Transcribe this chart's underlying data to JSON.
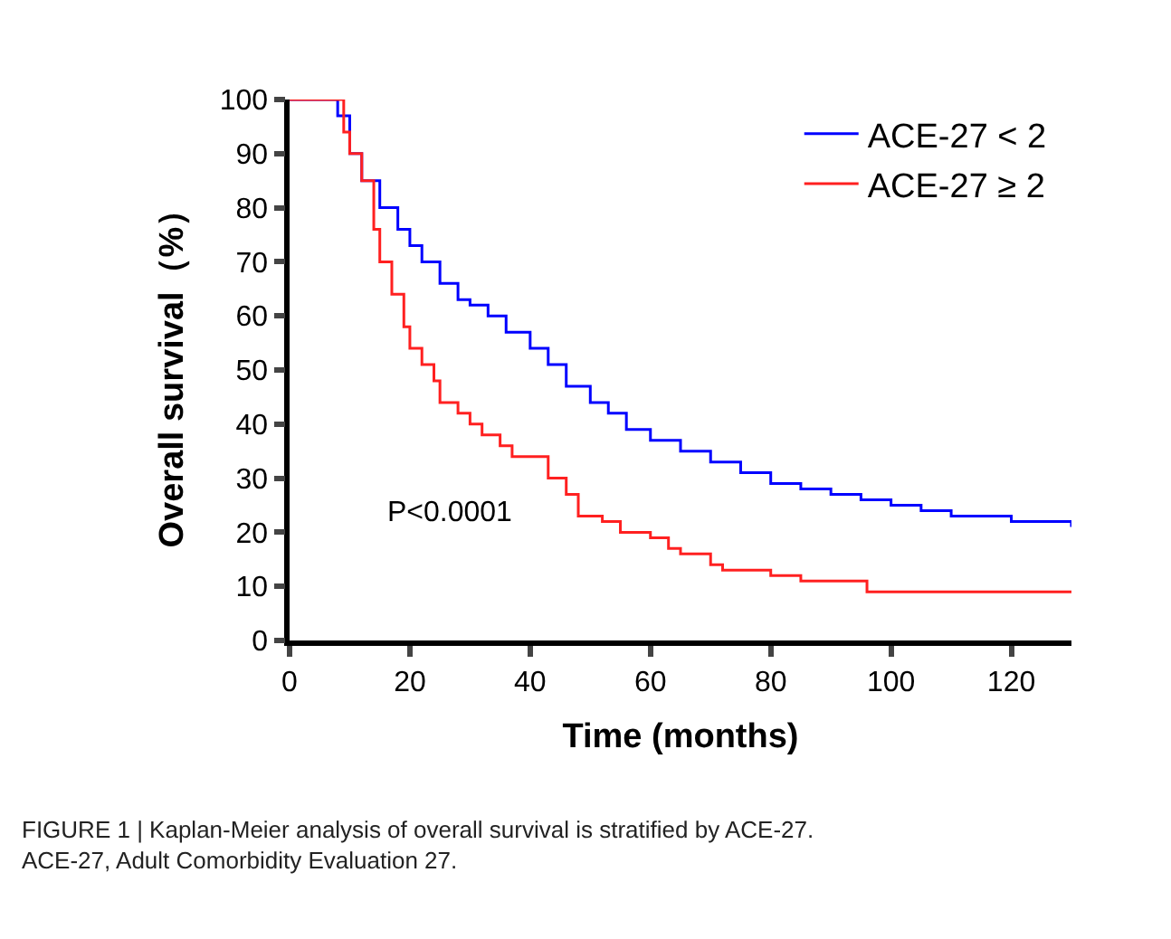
{
  "chart_data": {
    "type": "step",
    "xlabel": "Time (months)",
    "ylabel": "Overall survival（%）",
    "xlim": [
      0,
      130
    ],
    "xticks": [
      0,
      20,
      40,
      60,
      80,
      100,
      120
    ],
    "ylim": [
      0,
      100
    ],
    "yticks": [
      0,
      10,
      20,
      30,
      40,
      50,
      60,
      70,
      80,
      90,
      100
    ],
    "legend": "top right",
    "annotations": [
      "P<0.0001",
      "FIGURE 1 | Kaplan-Meier analysis of overall survival is stratified by ACE-27. ACE-27, Adult Comorbidity Evaluation 27."
    ],
    "series": [
      {
        "name": "ACE-27 < 2",
        "color": "#0000ff",
        "x": [
          0,
          3,
          8,
          10,
          12,
          15,
          18,
          20,
          22,
          25,
          28,
          30,
          33,
          36,
          40,
          43,
          46,
          50,
          53,
          56,
          60,
          65,
          70,
          75,
          80,
          85,
          90,
          95,
          100,
          105,
          110,
          120,
          125,
          130
        ],
        "values": [
          100,
          100,
          97,
          90,
          85,
          80,
          76,
          73,
          70,
          66,
          63,
          62,
          60,
          57,
          54,
          51,
          47,
          44,
          42,
          39,
          37,
          35,
          33,
          31,
          29,
          28,
          27,
          26,
          25,
          24,
          23,
          22,
          22,
          21
        ]
      },
      {
        "name": "ACE-27 ≥ 2",
        "color": "#ff2020",
        "x": [
          0,
          8,
          9,
          10,
          12,
          14,
          15,
          17,
          19,
          20,
          22,
          24,
          25,
          28,
          30,
          32,
          35,
          37,
          43,
          46,
          48,
          52,
          55,
          60,
          63,
          65,
          70,
          72,
          80,
          85,
          96,
          130
        ],
        "values": [
          100,
          100,
          94,
          90,
          85,
          76,
          70,
          64,
          58,
          54,
          51,
          48,
          44,
          42,
          40,
          38,
          36,
          34,
          30,
          27,
          23,
          22,
          20,
          19,
          17,
          16,
          14,
          13,
          12,
          11,
          9,
          9
        ]
      }
    ]
  }
}
